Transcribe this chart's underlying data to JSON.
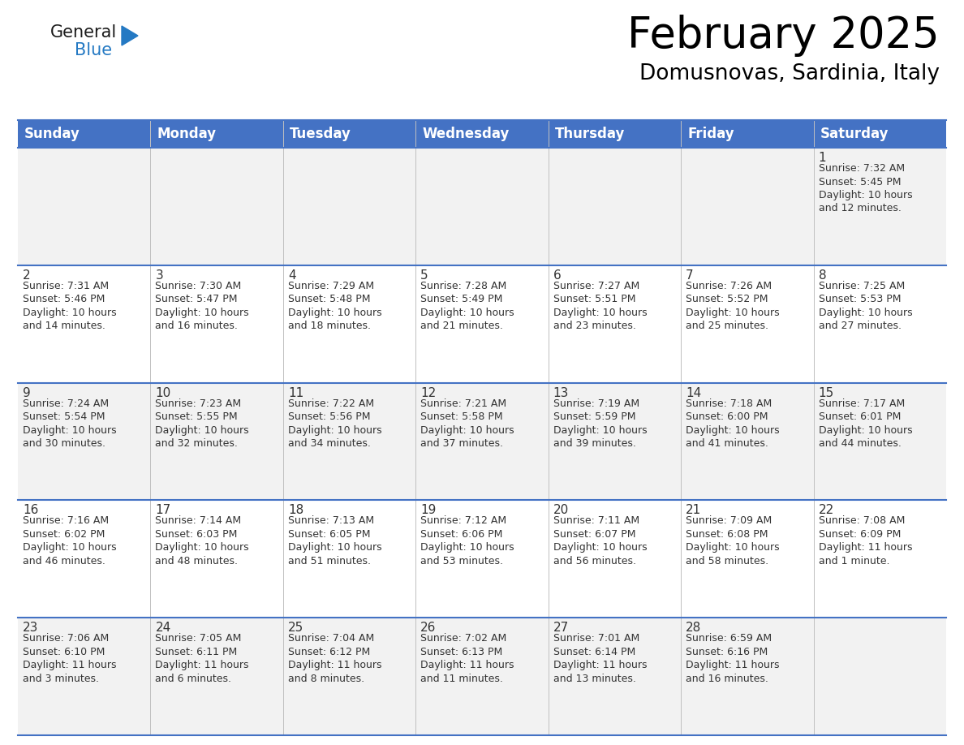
{
  "title": "February 2025",
  "subtitle": "Domusnovas, Sardinia, Italy",
  "header_bg": "#4472C4",
  "header_text_color": "#FFFFFF",
  "day_names": [
    "Sunday",
    "Monday",
    "Tuesday",
    "Wednesday",
    "Thursday",
    "Friday",
    "Saturday"
  ],
  "row_bg_colors": [
    "#F2F2F2",
    "#FFFFFF",
    "#F2F2F2",
    "#FFFFFF",
    "#F2F2F2"
  ],
  "cell_border_color": "#4472C4",
  "grid_line_color": "#C0C0C0",
  "calendar_data": [
    [
      {
        "day": null,
        "info": null
      },
      {
        "day": null,
        "info": null
      },
      {
        "day": null,
        "info": null
      },
      {
        "day": null,
        "info": null
      },
      {
        "day": null,
        "info": null
      },
      {
        "day": null,
        "info": null
      },
      {
        "day": 1,
        "info": "Sunrise: 7:32 AM\nSunset: 5:45 PM\nDaylight: 10 hours\nand 12 minutes."
      }
    ],
    [
      {
        "day": 2,
        "info": "Sunrise: 7:31 AM\nSunset: 5:46 PM\nDaylight: 10 hours\nand 14 minutes."
      },
      {
        "day": 3,
        "info": "Sunrise: 7:30 AM\nSunset: 5:47 PM\nDaylight: 10 hours\nand 16 minutes."
      },
      {
        "day": 4,
        "info": "Sunrise: 7:29 AM\nSunset: 5:48 PM\nDaylight: 10 hours\nand 18 minutes."
      },
      {
        "day": 5,
        "info": "Sunrise: 7:28 AM\nSunset: 5:49 PM\nDaylight: 10 hours\nand 21 minutes."
      },
      {
        "day": 6,
        "info": "Sunrise: 7:27 AM\nSunset: 5:51 PM\nDaylight: 10 hours\nand 23 minutes."
      },
      {
        "day": 7,
        "info": "Sunrise: 7:26 AM\nSunset: 5:52 PM\nDaylight: 10 hours\nand 25 minutes."
      },
      {
        "day": 8,
        "info": "Sunrise: 7:25 AM\nSunset: 5:53 PM\nDaylight: 10 hours\nand 27 minutes."
      }
    ],
    [
      {
        "day": 9,
        "info": "Sunrise: 7:24 AM\nSunset: 5:54 PM\nDaylight: 10 hours\nand 30 minutes."
      },
      {
        "day": 10,
        "info": "Sunrise: 7:23 AM\nSunset: 5:55 PM\nDaylight: 10 hours\nand 32 minutes."
      },
      {
        "day": 11,
        "info": "Sunrise: 7:22 AM\nSunset: 5:56 PM\nDaylight: 10 hours\nand 34 minutes."
      },
      {
        "day": 12,
        "info": "Sunrise: 7:21 AM\nSunset: 5:58 PM\nDaylight: 10 hours\nand 37 minutes."
      },
      {
        "day": 13,
        "info": "Sunrise: 7:19 AM\nSunset: 5:59 PM\nDaylight: 10 hours\nand 39 minutes."
      },
      {
        "day": 14,
        "info": "Sunrise: 7:18 AM\nSunset: 6:00 PM\nDaylight: 10 hours\nand 41 minutes."
      },
      {
        "day": 15,
        "info": "Sunrise: 7:17 AM\nSunset: 6:01 PM\nDaylight: 10 hours\nand 44 minutes."
      }
    ],
    [
      {
        "day": 16,
        "info": "Sunrise: 7:16 AM\nSunset: 6:02 PM\nDaylight: 10 hours\nand 46 minutes."
      },
      {
        "day": 17,
        "info": "Sunrise: 7:14 AM\nSunset: 6:03 PM\nDaylight: 10 hours\nand 48 minutes."
      },
      {
        "day": 18,
        "info": "Sunrise: 7:13 AM\nSunset: 6:05 PM\nDaylight: 10 hours\nand 51 minutes."
      },
      {
        "day": 19,
        "info": "Sunrise: 7:12 AM\nSunset: 6:06 PM\nDaylight: 10 hours\nand 53 minutes."
      },
      {
        "day": 20,
        "info": "Sunrise: 7:11 AM\nSunset: 6:07 PM\nDaylight: 10 hours\nand 56 minutes."
      },
      {
        "day": 21,
        "info": "Sunrise: 7:09 AM\nSunset: 6:08 PM\nDaylight: 10 hours\nand 58 minutes."
      },
      {
        "day": 22,
        "info": "Sunrise: 7:08 AM\nSunset: 6:09 PM\nDaylight: 11 hours\nand 1 minute."
      }
    ],
    [
      {
        "day": 23,
        "info": "Sunrise: 7:06 AM\nSunset: 6:10 PM\nDaylight: 11 hours\nand 3 minutes."
      },
      {
        "day": 24,
        "info": "Sunrise: 7:05 AM\nSunset: 6:11 PM\nDaylight: 11 hours\nand 6 minutes."
      },
      {
        "day": 25,
        "info": "Sunrise: 7:04 AM\nSunset: 6:12 PM\nDaylight: 11 hours\nand 8 minutes."
      },
      {
        "day": 26,
        "info": "Sunrise: 7:02 AM\nSunset: 6:13 PM\nDaylight: 11 hours\nand 11 minutes."
      },
      {
        "day": 27,
        "info": "Sunrise: 7:01 AM\nSunset: 6:14 PM\nDaylight: 11 hours\nand 13 minutes."
      },
      {
        "day": 28,
        "info": "Sunrise: 6:59 AM\nSunset: 6:16 PM\nDaylight: 11 hours\nand 16 minutes."
      },
      {
        "day": null,
        "info": null
      }
    ]
  ],
  "logo_general_color": "#1a1a1a",
  "logo_blue_color": "#2479C3",
  "title_fontsize": 38,
  "subtitle_fontsize": 19,
  "header_fontsize": 12,
  "day_number_fontsize": 11,
  "info_fontsize": 9
}
